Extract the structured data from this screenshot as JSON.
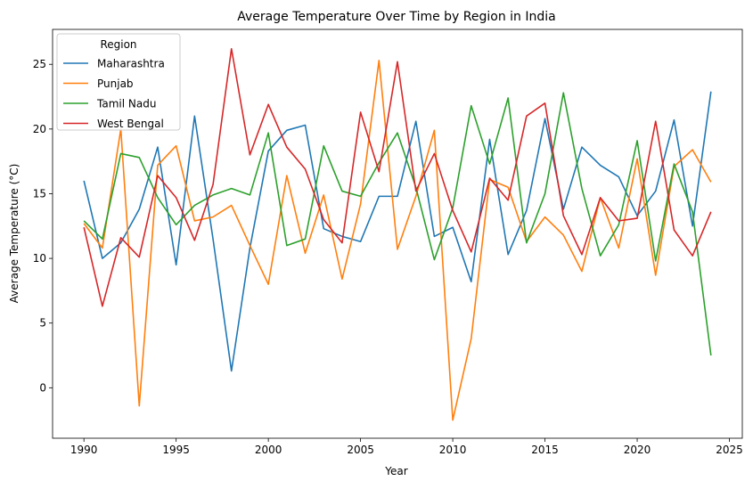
{
  "chart_data": {
    "type": "line",
    "title": "Average Temperature Over Time by Region in India",
    "xlabel": "Year",
    "ylabel": "Average Temperature (°C)",
    "xlim": [
      1988.3,
      2025.7
    ],
    "ylim": [
      -3.9,
      27.7
    ],
    "xticks": [
      1990,
      1995,
      2000,
      2005,
      2010,
      2015,
      2020,
      2025
    ],
    "yticks": [
      0,
      5,
      10,
      15,
      20,
      25
    ],
    "grid": false,
    "legend": {
      "title": "Region",
      "placement": "top-left"
    },
    "x": [
      1990,
      1991,
      1992,
      1993,
      1994,
      1995,
      1996,
      1997,
      1998,
      1999,
      2000,
      2001,
      2002,
      2003,
      2004,
      2005,
      2006,
      2007,
      2008,
      2009,
      2010,
      2011,
      2012,
      2013,
      2014,
      2015,
      2016,
      2017,
      2018,
      2019,
      2020,
      2021,
      2022,
      2023,
      2024
    ],
    "series": [
      {
        "name": "Maharashtra",
        "color": "#1f77b4",
        "values": [
          16.0,
          10.0,
          11.2,
          13.8,
          18.6,
          9.5,
          21.0,
          11.5,
          1.3,
          10.8,
          18.3,
          19.9,
          20.3,
          12.3,
          11.7,
          11.3,
          14.8,
          14.8,
          20.6,
          11.7,
          12.4,
          8.2,
          19.2,
          10.3,
          13.7,
          20.8,
          13.8,
          18.6,
          17.2,
          16.3,
          13.3,
          15.2,
          20.7,
          12.5,
          22.9
        ]
      },
      {
        "name": "Punjab",
        "color": "#ff7f0e",
        "values": [
          12.7,
          10.8,
          20.0,
          -1.4,
          17.2,
          18.7,
          12.9,
          13.2,
          14.1,
          11.0,
          8.0,
          16.4,
          10.4,
          14.9,
          8.4,
          14.2,
          25.3,
          10.7,
          14.8,
          19.9,
          -2.5,
          3.8,
          16.1,
          15.5,
          11.3,
          13.2,
          11.8,
          9.0,
          14.7,
          10.8,
          17.7,
          8.7,
          17.1,
          18.4,
          15.9
        ]
      },
      {
        "name": "Tamil Nadu",
        "color": "#2ca02c",
        "values": [
          12.9,
          11.5,
          18.1,
          17.8,
          14.7,
          12.6,
          14.1,
          14.9,
          15.4,
          14.9,
          19.7,
          11.0,
          11.5,
          18.7,
          15.2,
          14.8,
          17.4,
          19.7,
          15.5,
          9.9,
          13.9,
          21.8,
          17.3,
          22.4,
          11.2,
          15.0,
          22.8,
          15.4,
          10.2,
          12.6,
          19.1,
          9.8,
          17.3,
          13.6,
          2.5
        ]
      },
      {
        "name": "West Bengal",
        "color": "#d62728",
        "values": [
          12.4,
          6.3,
          11.6,
          10.1,
          16.4,
          14.7,
          11.4,
          15.7,
          26.2,
          18.0,
          21.9,
          18.6,
          16.9,
          13.0,
          11.2,
          21.3,
          16.7,
          25.2,
          15.2,
          18.1,
          13.7,
          10.5,
          16.2,
          14.5,
          21.0,
          22.0,
          13.3,
          10.3,
          14.7,
          12.9,
          13.1,
          20.6,
          12.2,
          10.2,
          13.6
        ]
      }
    ]
  }
}
